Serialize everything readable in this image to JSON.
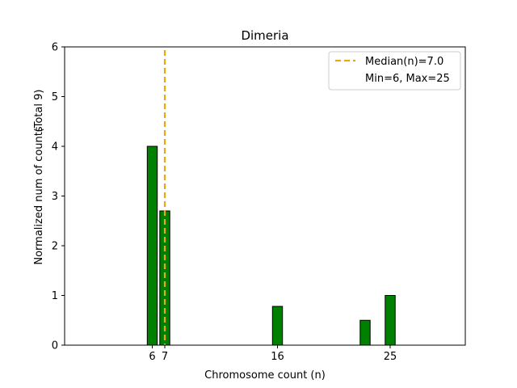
{
  "chart_data": {
    "type": "bar",
    "title": "Dimeria",
    "xlabel": "Chromosome count (n)",
    "ylabel": "Normalized num of counts",
    "ylabel_note": "(Total 9)",
    "xlim": [
      -1,
      31
    ],
    "ylim": [
      0,
      6
    ],
    "x_ticks": [
      6,
      7,
      16,
      25
    ],
    "y_ticks": [
      0,
      1,
      2,
      3,
      4,
      5,
      6
    ],
    "bars": [
      {
        "x": 6,
        "value": 4.0
      },
      {
        "x": 7,
        "value": 2.7
      },
      {
        "x": 16,
        "value": 0.78
      },
      {
        "x": 23,
        "value": 0.5
      },
      {
        "x": 25,
        "value": 1.0
      }
    ],
    "bar_color": "#008000",
    "bar_edge_color": "#000000",
    "median": 7.0,
    "median_color": "#e6a817",
    "legend": {
      "position": "top-right",
      "entries": [
        "Median(n)=7.0",
        "Min=6, Max=25"
      ]
    },
    "grid": false
  }
}
